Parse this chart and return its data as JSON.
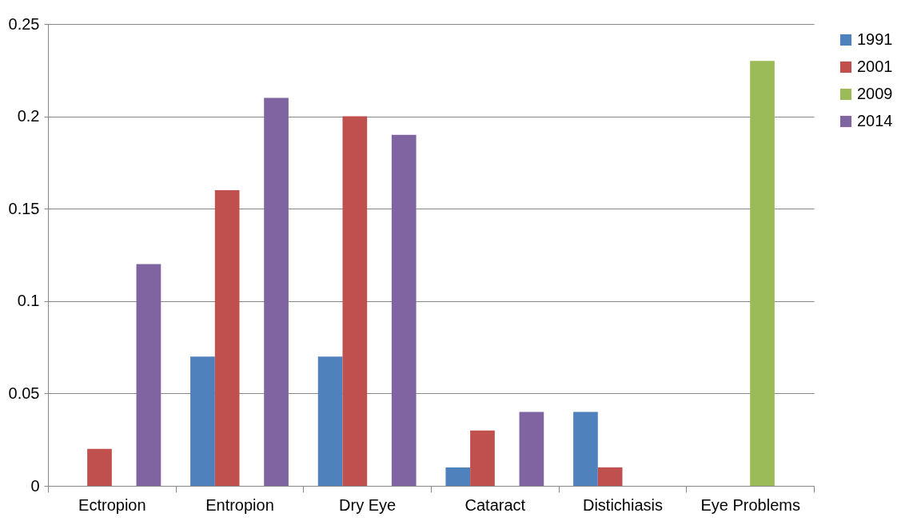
{
  "chart_data": {
    "type": "bar",
    "categories": [
      "Ectropion",
      "Entropion",
      "Dry Eye",
      "Cataract",
      "Distichiasis",
      "Eye Problems"
    ],
    "series": [
      {
        "name": "1991",
        "color": "#4f81bd",
        "values": [
          null,
          0.07,
          0.07,
          0.01,
          0.04,
          null
        ]
      },
      {
        "name": "2001",
        "color": "#c0504d",
        "values": [
          0.02,
          0.16,
          0.2,
          0.03,
          0.01,
          null
        ]
      },
      {
        "name": "2009",
        "color": "#9bbb59",
        "values": [
          null,
          null,
          null,
          null,
          null,
          0.23
        ]
      },
      {
        "name": "2014",
        "color": "#8064a2",
        "values": [
          0.12,
          0.21,
          0.19,
          0.04,
          null,
          null
        ]
      }
    ],
    "ylim": [
      0,
      0.25
    ],
    "yticks": [
      0,
      0.05,
      0.1,
      0.15,
      0.2,
      0.25
    ],
    "grid": "y",
    "legend": "right"
  }
}
